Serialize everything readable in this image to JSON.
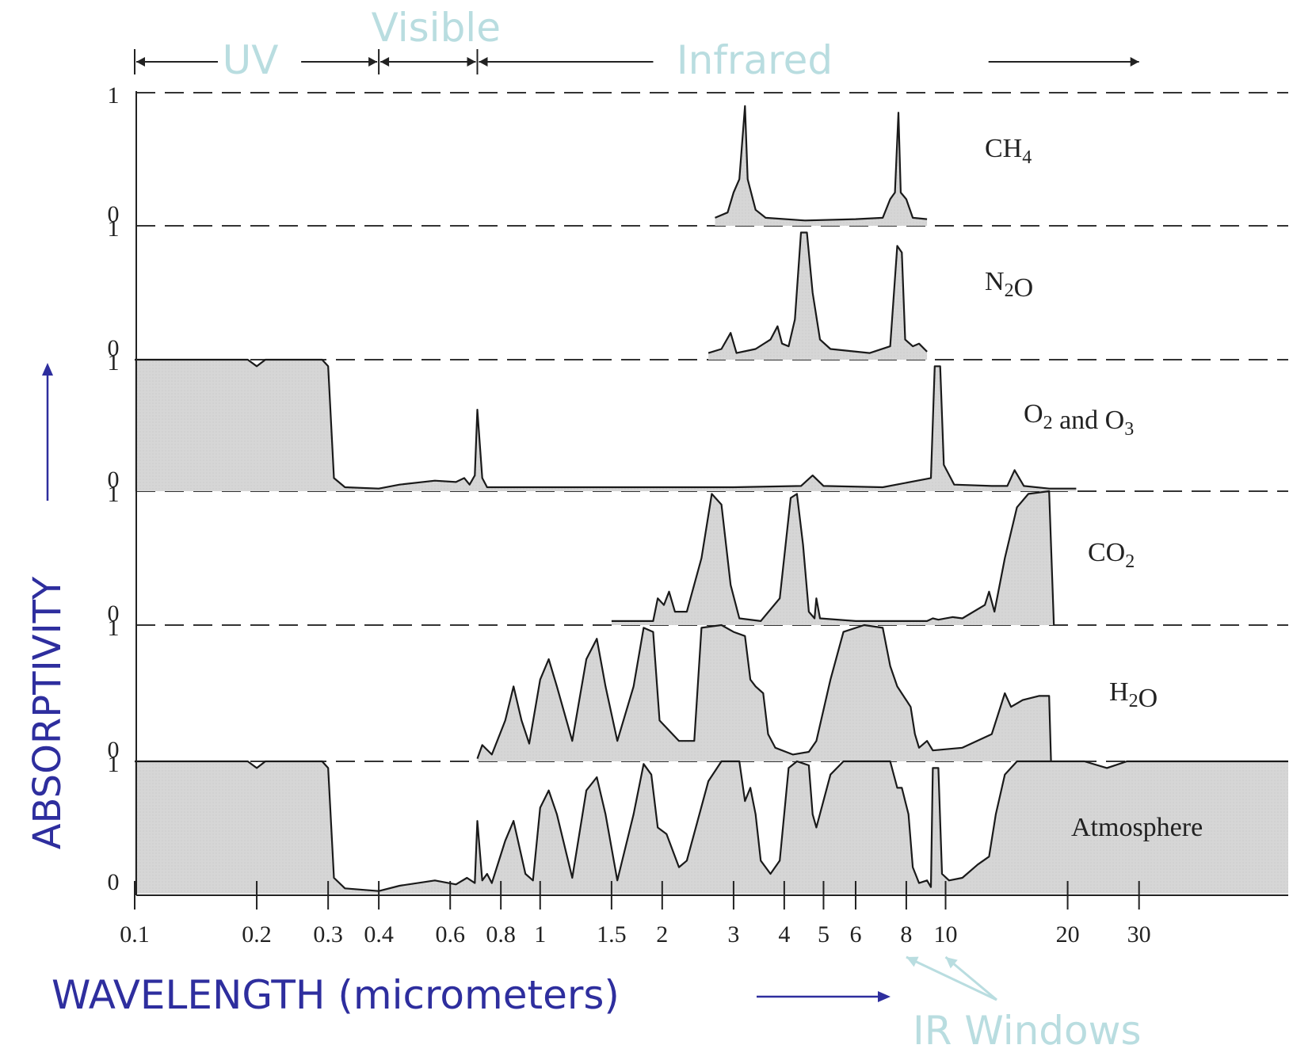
{
  "chart_data": {
    "type": "area",
    "x_scale": "log",
    "xlim": [
      0.1,
      70
    ],
    "x_ticks": [
      {
        "value": 0.1,
        "label": "0.1"
      },
      {
        "value": 0.2,
        "label": "0.2"
      },
      {
        "value": 0.3,
        "label": "0.3"
      },
      {
        "value": 0.4,
        "label": "0.4"
      },
      {
        "value": 0.6,
        "label": "0.6"
      },
      {
        "value": 0.8,
        "label": "0.8"
      },
      {
        "value": 1,
        "label": "1"
      },
      {
        "value": 1.5,
        "label": "1.5"
      },
      {
        "value": 2,
        "label": "2"
      },
      {
        "value": 3,
        "label": "3"
      },
      {
        "value": 4,
        "label": "4"
      },
      {
        "value": 5,
        "label": "5"
      },
      {
        "value": 6,
        "label": "6"
      },
      {
        "value": 8,
        "label": "8"
      },
      {
        "value": 10,
        "label": "10"
      },
      {
        "value": 20,
        "label": "20"
      },
      {
        "value": 30,
        "label": "30"
      }
    ],
    "ylim": [
      0,
      1
    ],
    "y_tick_labels": {
      "one": "1",
      "zero": "0"
    },
    "xlabel": "WAVELENGTH (micrometers)",
    "ylabel": "ABSORPTIVITY",
    "regions": [
      {
        "label": "UV",
        "range": [
          0.1,
          0.4
        ]
      },
      {
        "label": "Visible",
        "range": [
          0.4,
          0.7
        ]
      },
      {
        "label": "Infrared",
        "range": [
          0.7,
          30
        ]
      }
    ],
    "annotation": {
      "label": "IR Windows",
      "points": [
        8,
        10
      ]
    },
    "series": [
      {
        "name": "CH4",
        "label_main": "CH",
        "label_sub": "4",
        "label_after": "",
        "label_after_sub": "",
        "label_tail": "",
        "points": [
          [
            2.7,
            0.06
          ],
          [
            2.9,
            0.1
          ],
          [
            3.0,
            0.25
          ],
          [
            3.1,
            0.35
          ],
          [
            3.2,
            0.9
          ],
          [
            3.25,
            0.35
          ],
          [
            3.4,
            0.12
          ],
          [
            3.6,
            0.06
          ],
          [
            4.5,
            0.04
          ],
          [
            6,
            0.05
          ],
          [
            7,
            0.06
          ],
          [
            7.3,
            0.2
          ],
          [
            7.5,
            0.25
          ],
          [
            7.65,
            0.85
          ],
          [
            7.75,
            0.25
          ],
          [
            8.0,
            0.2
          ],
          [
            8.3,
            0.06
          ],
          [
            9,
            0.05
          ]
        ]
      },
      {
        "name": "N2O",
        "label_main": "N",
        "label_sub": "2",
        "label_after": "O",
        "label_after_sub": "",
        "label_tail": "",
        "points": [
          [
            2.6,
            0.05
          ],
          [
            2.8,
            0.08
          ],
          [
            2.95,
            0.2
          ],
          [
            3.05,
            0.05
          ],
          [
            3.4,
            0.08
          ],
          [
            3.7,
            0.15
          ],
          [
            3.85,
            0.25
          ],
          [
            3.95,
            0.12
          ],
          [
            4.1,
            0.1
          ],
          [
            4.25,
            0.3
          ],
          [
            4.4,
            0.95
          ],
          [
            4.55,
            0.95
          ],
          [
            4.7,
            0.5
          ],
          [
            4.9,
            0.15
          ],
          [
            5.2,
            0.08
          ],
          [
            6.5,
            0.05
          ],
          [
            7.3,
            0.1
          ],
          [
            7.6,
            0.85
          ],
          [
            7.8,
            0.8
          ],
          [
            7.95,
            0.15
          ],
          [
            8.3,
            0.1
          ],
          [
            8.6,
            0.12
          ],
          [
            9,
            0.06
          ]
        ]
      },
      {
        "name": "O2 and O3",
        "label_main": "O",
        "label_sub": "2",
        "label_after": " and O",
        "label_after_sub": "3",
        "label_tail": "",
        "points": [
          [
            0.1,
            1.0
          ],
          [
            0.19,
            1.0
          ],
          [
            0.2,
            0.95
          ],
          [
            0.21,
            1.0
          ],
          [
            0.29,
            1.0
          ],
          [
            0.3,
            0.95
          ],
          [
            0.31,
            0.1
          ],
          [
            0.33,
            0.03
          ],
          [
            0.4,
            0.02
          ],
          [
            0.45,
            0.05
          ],
          [
            0.55,
            0.08
          ],
          [
            0.62,
            0.07
          ],
          [
            0.65,
            0.1
          ],
          [
            0.67,
            0.05
          ],
          [
            0.69,
            0.12
          ],
          [
            0.7,
            0.62
          ],
          [
            0.72,
            0.1
          ],
          [
            0.74,
            0.03
          ],
          [
            1,
            0.03
          ],
          [
            2,
            0.03
          ],
          [
            3,
            0.03
          ],
          [
            4.4,
            0.04
          ],
          [
            4.7,
            0.12
          ],
          [
            5.0,
            0.04
          ],
          [
            7,
            0.03
          ],
          [
            9.2,
            0.1
          ],
          [
            9.4,
            0.95
          ],
          [
            9.7,
            0.95
          ],
          [
            9.9,
            0.2
          ],
          [
            10.5,
            0.05
          ],
          [
            13,
            0.04
          ],
          [
            14.2,
            0.04
          ],
          [
            14.8,
            0.16
          ],
          [
            15.6,
            0.04
          ],
          [
            18,
            0.02
          ],
          [
            21,
            0.02
          ]
        ]
      },
      {
        "name": "CO2",
        "label_main": "CO",
        "label_sub": "2",
        "label_after": "",
        "label_after_sub": "",
        "label_tail": "",
        "points": [
          [
            1.5,
            0.03
          ],
          [
            1.9,
            0.03
          ],
          [
            1.95,
            0.2
          ],
          [
            2.02,
            0.15
          ],
          [
            2.08,
            0.25
          ],
          [
            2.15,
            0.1
          ],
          [
            2.3,
            0.1
          ],
          [
            2.5,
            0.5
          ],
          [
            2.65,
            0.98
          ],
          [
            2.8,
            0.9
          ],
          [
            2.95,
            0.3
          ],
          [
            3.1,
            0.05
          ],
          [
            3.5,
            0.03
          ],
          [
            3.9,
            0.2
          ],
          [
            4.15,
            0.95
          ],
          [
            4.3,
            0.98
          ],
          [
            4.45,
            0.6
          ],
          [
            4.6,
            0.1
          ],
          [
            4.75,
            0.05
          ],
          [
            4.8,
            0.2
          ],
          [
            4.9,
            0.05
          ],
          [
            6,
            0.03
          ],
          [
            9,
            0.03
          ],
          [
            9.3,
            0.05
          ],
          [
            9.6,
            0.04
          ],
          [
            10.4,
            0.06
          ],
          [
            11,
            0.05
          ],
          [
            12.5,
            0.15
          ],
          [
            12.8,
            0.25
          ],
          [
            13.2,
            0.1
          ],
          [
            14,
            0.5
          ],
          [
            15,
            0.88
          ],
          [
            16,
            0.98
          ],
          [
            18,
            1.0
          ],
          [
            18.5,
            0
          ]
        ]
      },
      {
        "name": "H2O",
        "label_main": "H",
        "label_sub": "2",
        "label_after": "O",
        "label_after_sub": "",
        "label_tail": "",
        "points": [
          [
            0.7,
            0.02
          ],
          [
            0.72,
            0.12
          ],
          [
            0.76,
            0.05
          ],
          [
            0.82,
            0.3
          ],
          [
            0.86,
            0.55
          ],
          [
            0.9,
            0.3
          ],
          [
            0.94,
            0.13
          ],
          [
            1.0,
            0.6
          ],
          [
            1.05,
            0.75
          ],
          [
            1.1,
            0.55
          ],
          [
            1.2,
            0.15
          ],
          [
            1.3,
            0.75
          ],
          [
            1.38,
            0.9
          ],
          [
            1.45,
            0.55
          ],
          [
            1.55,
            0.15
          ],
          [
            1.7,
            0.55
          ],
          [
            1.8,
            0.98
          ],
          [
            1.9,
            0.95
          ],
          [
            1.97,
            0.3
          ],
          [
            2.2,
            0.15
          ],
          [
            2.4,
            0.15
          ],
          [
            2.5,
            0.98
          ],
          [
            2.8,
            1.0
          ],
          [
            3.0,
            0.95
          ],
          [
            3.2,
            0.92
          ],
          [
            3.3,
            0.6
          ],
          [
            3.4,
            0.55
          ],
          [
            3.55,
            0.5
          ],
          [
            3.65,
            0.2
          ],
          [
            3.8,
            0.1
          ],
          [
            4.2,
            0.05
          ],
          [
            4.6,
            0.07
          ],
          [
            4.8,
            0.15
          ],
          [
            5.2,
            0.6
          ],
          [
            5.6,
            0.95
          ],
          [
            6.3,
            1.0
          ],
          [
            7.0,
            0.98
          ],
          [
            7.3,
            0.7
          ],
          [
            7.6,
            0.55
          ],
          [
            8.2,
            0.4
          ],
          [
            8.4,
            0.2
          ],
          [
            8.6,
            0.1
          ],
          [
            9,
            0.15
          ],
          [
            9.3,
            0.08
          ],
          [
            11,
            0.1
          ],
          [
            13,
            0.2
          ],
          [
            14,
            0.5
          ],
          [
            14.5,
            0.4
          ],
          [
            15.5,
            0.45
          ],
          [
            17,
            0.48
          ],
          [
            18,
            0.48
          ],
          [
            18.2,
            0
          ]
        ]
      },
      {
        "name": "Atmosphere",
        "label_main": "Atmosphere",
        "label_sub": "",
        "label_after": "",
        "label_after_sub": "",
        "label_tail": "",
        "points": [
          [
            0.1,
            1.0
          ],
          [
            0.19,
            1.0
          ],
          [
            0.2,
            0.95
          ],
          [
            0.21,
            1.0
          ],
          [
            0.29,
            1.0
          ],
          [
            0.3,
            0.95
          ],
          [
            0.31,
            0.12
          ],
          [
            0.33,
            0.04
          ],
          [
            0.4,
            0.02
          ],
          [
            0.45,
            0.06
          ],
          [
            0.55,
            0.1
          ],
          [
            0.62,
            0.07
          ],
          [
            0.66,
            0.12
          ],
          [
            0.69,
            0.08
          ],
          [
            0.7,
            0.55
          ],
          [
            0.72,
            0.1
          ],
          [
            0.74,
            0.15
          ],
          [
            0.76,
            0.08
          ],
          [
            0.82,
            0.4
          ],
          [
            0.86,
            0.55
          ],
          [
            0.92,
            0.15
          ],
          [
            0.96,
            0.1
          ],
          [
            1.0,
            0.65
          ],
          [
            1.05,
            0.78
          ],
          [
            1.1,
            0.6
          ],
          [
            1.2,
            0.12
          ],
          [
            1.3,
            0.78
          ],
          [
            1.38,
            0.88
          ],
          [
            1.45,
            0.6
          ],
          [
            1.55,
            0.1
          ],
          [
            1.7,
            0.6
          ],
          [
            1.8,
            0.98
          ],
          [
            1.88,
            0.9
          ],
          [
            1.95,
            0.5
          ],
          [
            2.05,
            0.45
          ],
          [
            2.2,
            0.2
          ],
          [
            2.3,
            0.25
          ],
          [
            2.6,
            0.85
          ],
          [
            2.8,
            1.0
          ],
          [
            3.1,
            1.0
          ],
          [
            3.2,
            0.7
          ],
          [
            3.3,
            0.8
          ],
          [
            3.4,
            0.6
          ],
          [
            3.5,
            0.25
          ],
          [
            3.7,
            0.15
          ],
          [
            3.9,
            0.25
          ],
          [
            4.1,
            0.95
          ],
          [
            4.3,
            1.0
          ],
          [
            4.6,
            0.97
          ],
          [
            4.7,
            0.6
          ],
          [
            4.8,
            0.5
          ],
          [
            5.2,
            0.9
          ],
          [
            5.6,
            1.0
          ],
          [
            6.5,
            1.0
          ],
          [
            7.3,
            1.0
          ],
          [
            7.6,
            0.8
          ],
          [
            7.8,
            0.8
          ],
          [
            8.1,
            0.6
          ],
          [
            8.3,
            0.2
          ],
          [
            8.6,
            0.08
          ],
          [
            9.0,
            0.1
          ],
          [
            9.2,
            0.05
          ],
          [
            9.3,
            0.95
          ],
          [
            9.6,
            0.95
          ],
          [
            9.8,
            0.15
          ],
          [
            10.2,
            0.1
          ],
          [
            11,
            0.12
          ],
          [
            12,
            0.22
          ],
          [
            12.8,
            0.28
          ],
          [
            13.3,
            0.6
          ],
          [
            14,
            0.9
          ],
          [
            15,
            1.0
          ],
          [
            22,
            1.0
          ],
          [
            25,
            0.95
          ],
          [
            28,
            1.0
          ],
          [
            70,
            1.0
          ]
        ]
      }
    ]
  }
}
